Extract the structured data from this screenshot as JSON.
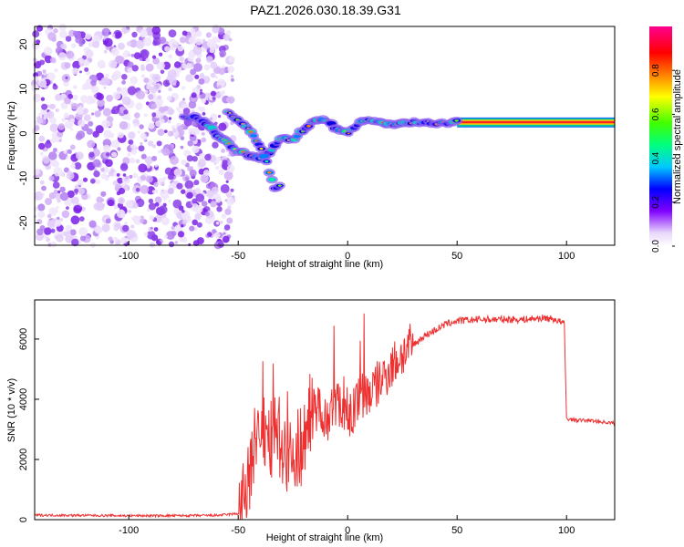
{
  "title": "PAZ1.2026.030.18.39.G31",
  "chart_data": [
    {
      "type": "heatmap",
      "xlabel": "Height of straight line (km)",
      "ylabel": "Frequency (Hz)",
      "xlim": [
        -143,
        122
      ],
      "ylim": [
        -25,
        24
      ],
      "xticks": [
        -100,
        -50,
        0,
        50,
        100
      ],
      "yticks": [
        -20,
        -10,
        0,
        10,
        20
      ],
      "ridge": {
        "x": [
          -75,
          -70,
          -65,
          -60,
          -55,
          -50,
          -45,
          -40,
          -35,
          -30,
          -25,
          -20,
          -15,
          -10,
          -5,
          0,
          5,
          10,
          20,
          30,
          40,
          50,
          60,
          70,
          80,
          90,
          100,
          110,
          122
        ],
        "y": [
          4,
          3.5,
          2.5,
          0,
          -2,
          -4,
          -5,
          -5.5,
          -4,
          -1,
          -1.5,
          1,
          3,
          3,
          1,
          0,
          2.5,
          3,
          2,
          2.5,
          2.5,
          2.5,
          2.5,
          2.5,
          2.5,
          2.5,
          2.5,
          2.5,
          2.5
        ]
      },
      "branch": {
        "x": [
          -55,
          -50,
          -45,
          -40,
          -37,
          -35,
          -33,
          -30
        ],
        "y": [
          5,
          3,
          1,
          -3,
          -6,
          -10,
          -13,
          -11
        ]
      },
      "noise_region": [
        -143,
        -55
      ],
      "band": [
        1.5,
        3.5
      ],
      "colorbar": {
        "label": "Normalized spectral amplitude",
        "ticks": [
          "0.0",
          "0.2",
          "0.4",
          "0.6",
          "0.8"
        ],
        "range": [
          0,
          1
        ]
      }
    },
    {
      "type": "line",
      "xlabel": "Height of straight line (km)",
      "ylabel": "SNR (10 * v/v)",
      "xlim": [
        -143,
        122
      ],
      "ylim": [
        0,
        7300
      ],
      "xticks": [
        -100,
        -50,
        0,
        50,
        100
      ],
      "yticks": [
        0,
        2000,
        4000,
        6000
      ],
      "color": "#ee3030",
      "series": [
        {
          "name": "SNR",
          "x": [
            -143,
            -120,
            -100,
            -80,
            -60,
            -50,
            -48,
            -45,
            -42,
            -40,
            -38,
            -35,
            -32,
            -30,
            -28,
            -25,
            -22,
            -20,
            -18,
            -15,
            -12,
            -10,
            -8,
            -5,
            -3,
            0,
            2,
            5,
            8,
            10,
            15,
            20,
            25,
            30,
            35,
            40,
            45,
            50,
            60,
            70,
            80,
            90,
            95,
            99,
            100,
            105,
            110,
            122
          ],
          "y": [
            150,
            140,
            130,
            130,
            140,
            200,
            500,
            1500,
            2500,
            3200,
            2800,
            2600,
            3000,
            2500,
            2300,
            2400,
            2300,
            2800,
            3500,
            3700,
            3800,
            3300,
            3500,
            3900,
            3700,
            3600,
            3500,
            4000,
            4200,
            4200,
            4600,
            5100,
            5500,
            5800,
            6100,
            6300,
            6500,
            6600,
            6650,
            6650,
            6650,
            6700,
            6650,
            6500,
            3350,
            3300,
            3300,
            3200
          ]
        }
      ]
    }
  ]
}
